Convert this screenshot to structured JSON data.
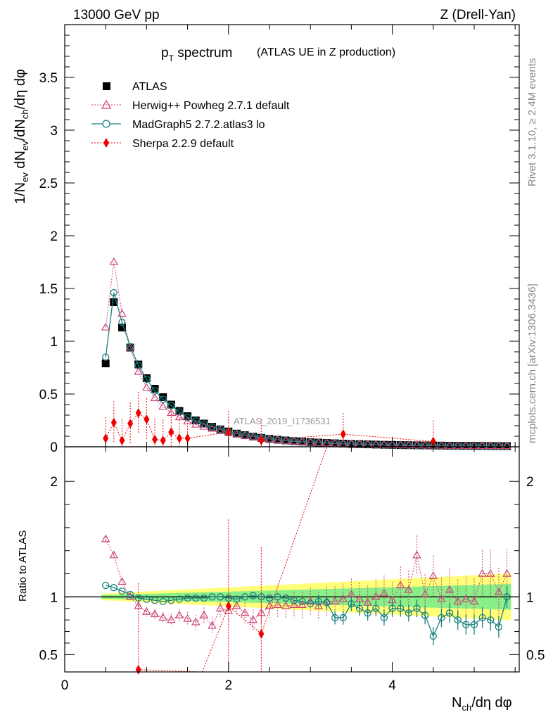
{
  "header": {
    "left": "13000 GeV pp",
    "right": "Z (Drell-Yan)"
  },
  "side_labels": {
    "rivet": "Rivet 3.1.10, ≥ 2.4M events",
    "mcplots": "mcplots.cern.ch [arXiv:1306.3436]"
  },
  "watermark": "ATLAS_2019_I1736531",
  "colors": {
    "atlas": "#000000",
    "herwig": "#cc4477",
    "madgraph": "#1a8080",
    "sherpa": "#ee0000",
    "band_inner": "#88ee88",
    "band_outer": "#ffff77"
  },
  "chart_data": [
    {
      "type": "scatter",
      "title_main": "p",
      "title_sub": "T",
      "title_word": " spectrum",
      "title_note": "(ATLAS UE in Z production)",
      "ylabel": "1/N_ev dN_ch/dη dφ",
      "xlabel": "N_ch/dη dφ",
      "xlim": [
        0,
        5.55
      ],
      "ylim": [
        0,
        4.0
      ],
      "y_ticks": [
        "0",
        "0.5",
        "1",
        "1.5",
        "2",
        "2.5",
        "3",
        "3.5"
      ],
      "y_tick_values": [
        0,
        0.5,
        1,
        1.5,
        2,
        2.5,
        3,
        3.5
      ],
      "legend": [
        {
          "key": "atlas",
          "label": "ATLAS"
        },
        {
          "key": "herwig",
          "label": "Herwig++ Powheg 2.7.1 default"
        },
        {
          "key": "madgraph",
          "label": "MadGraph5 2.7.2.atlas3 lo"
        },
        {
          "key": "sherpa",
          "label": "Sherpa 2.2.9 default"
        }
      ],
      "x": [
        0.5,
        0.6,
        0.7,
        0.8,
        0.9,
        1.0,
        1.1,
        1.2,
        1.3,
        1.4,
        1.5,
        1.6,
        1.7,
        1.8,
        1.9,
        2.0,
        2.1,
        2.2,
        2.3,
        2.4,
        2.5,
        2.6,
        2.7,
        2.8,
        2.9,
        3.0,
        3.1,
        3.2,
        3.3,
        3.4,
        3.5,
        3.6,
        3.7,
        3.8,
        3.9,
        4.0,
        4.1,
        4.2,
        4.3,
        4.4,
        4.5,
        4.6,
        4.7,
        4.8,
        4.9,
        5.0,
        5.1,
        5.2,
        5.3,
        5.4
      ],
      "atlas": [
        0.79,
        1.37,
        1.13,
        0.94,
        0.78,
        0.65,
        0.55,
        0.47,
        0.4,
        0.34,
        0.29,
        0.25,
        0.22,
        0.19,
        0.165,
        0.145,
        0.125,
        0.11,
        0.097,
        0.085,
        0.075,
        0.067,
        0.06,
        0.054,
        0.049,
        0.044,
        0.04,
        0.036,
        0.033,
        0.03,
        0.027,
        0.025,
        0.023,
        0.021,
        0.019,
        0.018,
        0.016,
        0.015,
        0.014,
        0.013,
        0.012,
        0.011,
        0.01,
        0.0095,
        0.009,
        0.0085,
        0.008,
        0.0075,
        0.007,
        0.0065
      ],
      "herwig": [
        1.13,
        1.75,
        1.26,
        0.94,
        0.71,
        0.56,
        0.46,
        0.38,
        0.32,
        0.28,
        0.24,
        0.21,
        0.19,
        0.17,
        0.15,
        0.13,
        0.115,
        0.1,
        0.09,
        0.08,
        0.07,
        0.062,
        0.056,
        0.05,
        0.045,
        0.041,
        0.037,
        0.033,
        0.03,
        0.028,
        0.025,
        0.023,
        0.021,
        0.019,
        0.018,
        0.016,
        0.015,
        0.014,
        0.013,
        0.012,
        0.011,
        0.01,
        0.009,
        0.0085,
        0.008,
        0.0078,
        0.0075,
        0.007,
        0.0066,
        0.0061
      ],
      "madgraph": [
        0.85,
        1.46,
        1.18,
        0.95,
        0.77,
        0.64,
        0.53,
        0.45,
        0.39,
        0.33,
        0.28,
        0.245,
        0.215,
        0.19,
        0.165,
        0.143,
        0.124,
        0.11,
        0.098,
        0.085,
        0.074,
        0.066,
        0.058,
        0.052,
        0.047,
        0.042,
        0.038,
        0.034,
        0.031,
        0.028,
        0.025,
        0.023,
        0.021,
        0.019,
        0.017,
        0.016,
        0.014,
        0.013,
        0.012,
        0.011,
        0.01,
        0.009,
        0.0085,
        0.008,
        0.0075,
        0.007,
        0.0066,
        0.0062,
        0.0058,
        0.0055
      ],
      "sherpa_x": [
        0.5,
        0.6,
        0.7,
        0.8,
        0.9,
        1.0,
        1.1,
        1.2,
        1.3,
        1.4,
        1.5,
        2.0,
        2.4,
        3.4,
        4.5
      ],
      "sherpa": [
        0.08,
        0.23,
        0.06,
        0.22,
        0.32,
        0.26,
        0.07,
        0.06,
        0.14,
        0.08,
        0.08,
        0.14,
        0.06,
        0.12,
        0.05
      ]
    },
    {
      "type": "scatter",
      "ylabel": "Ratio to ATLAS",
      "xlim": [
        0,
        5.55
      ],
      "ylim": [
        0.35,
        2.3
      ],
      "y_ticks": [
        "0.5",
        "1",
        "2"
      ],
      "y_tick_values": [
        0.5,
        1,
        2
      ],
      "x_ticks": [
        "0",
        "2",
        "4"
      ],
      "x_tick_values": [
        0,
        2,
        4
      ],
      "herwig_ratio": [
        1.5,
        1.36,
        1.13,
        1.0,
        0.92,
        0.87,
        0.85,
        0.82,
        0.8,
        0.84,
        0.81,
        0.78,
        0.84,
        0.75,
        0.9,
        0.88,
        0.92,
        0.86,
        0.8,
        0.86,
        0.92,
        0.93,
        0.92,
        0.93,
        0.93,
        0.96,
        0.92,
        0.96,
        0.96,
        0.98,
        1.02,
        0.98,
        0.95,
        1.0,
        1.03,
        0.97,
        1.1,
        1.06,
        1.36,
        1.02,
        1.18,
        0.98,
        1.06,
        0.96,
        0.98,
        0.96,
        1.2,
        1.2,
        1.04,
        1.2
      ],
      "madgraph_ratio": [
        1.1,
        1.08,
        1.05,
        1.02,
        0.99,
        0.98,
        0.97,
        0.96,
        0.97,
        0.98,
        0.99,
        0.99,
        0.99,
        1.0,
        1.0,
        0.99,
        0.98,
        1.0,
        1.01,
        1.0,
        0.99,
        1.0,
        0.99,
        0.97,
        0.96,
        0.94,
        0.96,
        0.95,
        0.82,
        0.82,
        0.94,
        0.9,
        0.86,
        0.9,
        0.82,
        0.9,
        0.9,
        0.86,
        0.9,
        0.84,
        0.66,
        0.82,
        0.86,
        0.8,
        0.76,
        0.76,
        0.82,
        0.8,
        0.74,
        1.0
      ],
      "sherpa_ratio_x": [
        0.9,
        2.0,
        2.4
      ],
      "sherpa_ratio": [
        0.37,
        0.92,
        0.68
      ]
    }
  ]
}
